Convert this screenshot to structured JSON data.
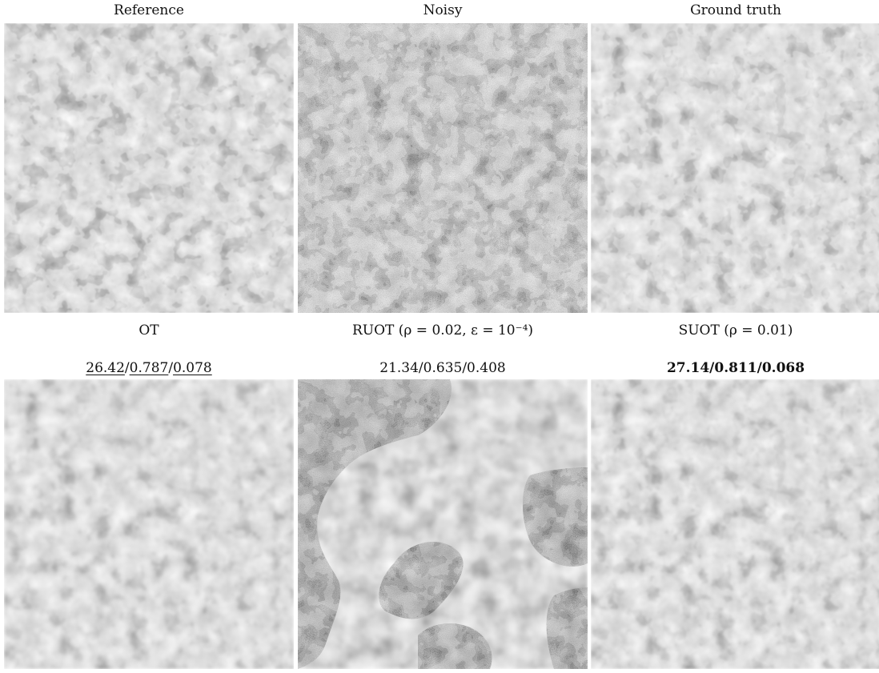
{
  "panels": [
    {
      "title": "Reference",
      "metrics": null
    },
    {
      "title": "Noisy",
      "metrics": null
    },
    {
      "title": "Ground truth",
      "metrics": null
    },
    {
      "title": "OT",
      "metrics": {
        "psnr": "26.42",
        "ssim": "0.787",
        "err": "0.078",
        "style": "underline",
        "sep": "/"
      }
    },
    {
      "title": "RUOT (ρ = 0.02, ε = 10⁻⁴)",
      "metrics": {
        "text": "21.34/0.635/0.408",
        "style": "plain"
      }
    },
    {
      "title": "SUOT (ρ = 0.01)",
      "metrics": {
        "text": "27.14/0.811/0.068",
        "style": "bold"
      }
    }
  ],
  "colors": {
    "background": "#ffffff",
    "texture_light": "#8a8a8a",
    "texture_dark": "#3a3a3a"
  }
}
